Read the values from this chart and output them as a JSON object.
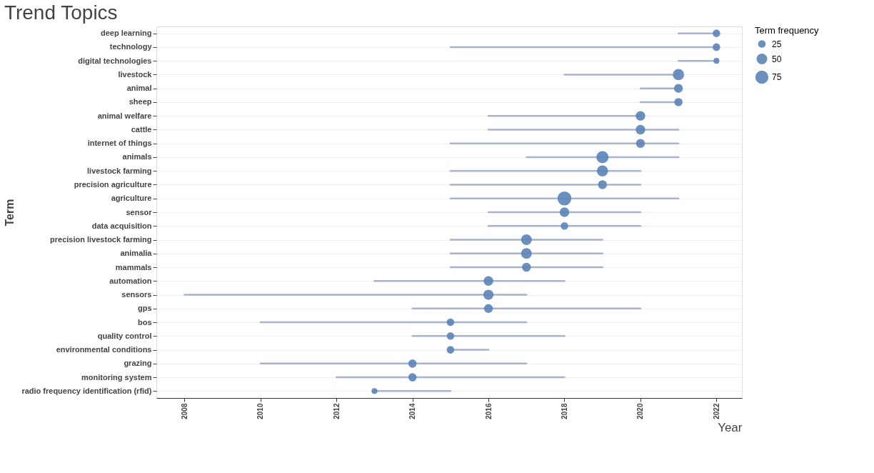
{
  "chart_data": {
    "type": "bubble",
    "title": "Trend Topics",
    "xlabel": "Year",
    "ylabel": "Term",
    "legend_title": "Term frequency",
    "orientation": "horizontal",
    "categories": [
      "deep learning",
      "technology",
      "digital technologies",
      "livestock",
      "animal",
      "sheep",
      "animal welfare",
      "cattle",
      "internet of things",
      "animals",
      "livestock farming",
      "precision agriculture",
      "agriculture",
      "sensor",
      "data acquisition",
      "precision livestock farming",
      "animalia",
      "mammals",
      "automation",
      "sensors",
      "gps",
      "bos",
      "quality control",
      "environmental conditions",
      "grazing",
      "monitoring system",
      "radio frequency identification (rfid)"
    ],
    "color": "#5b84b8",
    "values": [
      2022,
      2022,
      2022,
      2021,
      2021,
      2021,
      2020,
      2020,
      2020,
      2019,
      2019,
      2019,
      2018,
      2018,
      2018,
      2017,
      2017,
      2017,
      2016,
      2016,
      2016,
      2015,
      2015,
      2015,
      2014,
      2014,
      2013
    ],
    "errors": [
      [
        2021,
        2022
      ],
      [
        2015,
        2022
      ],
      [
        2021,
        2022
      ],
      [
        2018,
        2021
      ],
      [
        2020,
        2021
      ],
      [
        2020,
        2021
      ],
      [
        2016,
        2020
      ],
      [
        2016,
        2021
      ],
      [
        2015,
        2021
      ],
      [
        2017,
        2021
      ],
      [
        2015,
        2020
      ],
      [
        2015,
        2020
      ],
      [
        2015,
        2021
      ],
      [
        2016,
        2020
      ],
      [
        2016,
        2020
      ],
      [
        2015,
        2019
      ],
      [
        2015,
        2019
      ],
      [
        2015,
        2019
      ],
      [
        2013,
        2018
      ],
      [
        2008,
        2017
      ],
      [
        2014,
        2020
      ],
      [
        2010,
        2017
      ],
      [
        2014,
        2018
      ],
      [
        2015,
        2016
      ],
      [
        2010,
        2017
      ],
      [
        2012,
        2018
      ],
      [
        2013,
        2015
      ]
    ],
    "sizes": [
      25,
      25,
      15,
      55,
      35,
      30,
      40,
      40,
      35,
      65,
      55,
      35,
      85,
      40,
      25,
      50,
      50,
      35,
      40,
      45,
      35,
      25,
      25,
      25,
      30,
      30,
      15
    ],
    "size_legend": [
      25,
      50,
      75
    ],
    "xlim": [
      2007.26,
      2022.67
    ],
    "xticks": [
      2008,
      2010,
      2012,
      2014,
      2016,
      2018,
      2020,
      2022
    ],
    "grid": "y",
    "marker": "circle"
  }
}
